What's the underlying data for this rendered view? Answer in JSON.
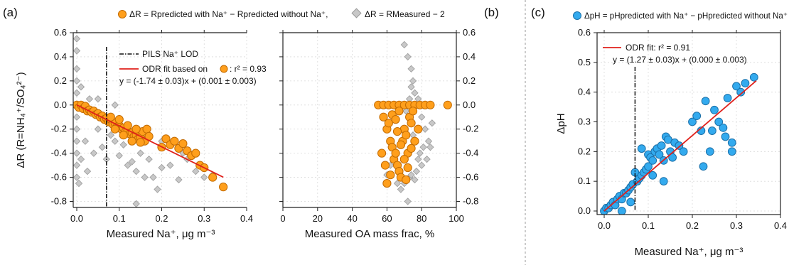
{
  "chart_data": [
    {
      "panel_label": "(a)",
      "type": "scatter",
      "legend_top": {
        "orange_text": "ΔR = Rpredicted with Na⁺ − Rpredicted without Na⁺,",
        "gray_text": "ΔR = RMeasured − 2"
      },
      "ylabel": "ΔR (R=NH₄⁺/SO₄²⁻)",
      "left": {
        "xlabel": "Measured Na⁺, μg m⁻³",
        "xlim": [
          0,
          0.4
        ],
        "ylim": [
          -0.85,
          0.6
        ],
        "xticks": [
          "0.0",
          "0.1",
          "0.2",
          "0.3",
          "0.4"
        ],
        "yticks": [
          "-0.8",
          "-0.6",
          "-0.4",
          "-0.2",
          "0.0",
          "0.2",
          "0.4",
          "0.6"
        ],
        "lod_label": "PILS Na⁺ LOD",
        "lod_x": 0.07,
        "fit_label_a": "ODR fit based on",
        "fit_label_b": ": r² = 0.93",
        "fit_eq": "y = (-1.74 ± 0.03)x + (0.001 ± 0.003)",
        "fit_slope": -1.74,
        "fit_intercept": 0.001,
        "fit_xrange": [
          0,
          0.345
        ],
        "orange_points": [
          [
            0.0,
            0.0
          ],
          [
            0.005,
            -0.02
          ],
          [
            0.01,
            0.0
          ],
          [
            0.015,
            -0.03
          ],
          [
            0.02,
            -0.01
          ],
          [
            0.025,
            -0.05
          ],
          [
            0.03,
            -0.04
          ],
          [
            0.035,
            -0.06
          ],
          [
            0.04,
            -0.05
          ],
          [
            0.045,
            -0.08
          ],
          [
            0.05,
            -0.07
          ],
          [
            0.055,
            -0.1
          ],
          [
            0.06,
            -0.09
          ],
          [
            0.065,
            -0.12
          ],
          [
            0.07,
            -0.11
          ],
          [
            0.075,
            -0.14
          ],
          [
            0.08,
            -0.12
          ],
          [
            0.085,
            -0.16
          ],
          [
            0.09,
            -0.15
          ],
          [
            0.095,
            -0.18
          ],
          [
            0.1,
            -0.17
          ],
          [
            0.105,
            -0.2
          ],
          [
            0.11,
            -0.19
          ],
          [
            0.115,
            -0.22
          ],
          [
            0.12,
            -0.21
          ],
          [
            0.125,
            -0.24
          ],
          [
            0.13,
            -0.23
          ],
          [
            0.135,
            -0.26
          ],
          [
            0.14,
            -0.25
          ],
          [
            0.145,
            -0.28
          ],
          [
            0.15,
            -0.27
          ],
          [
            0.155,
            -0.22
          ],
          [
            0.16,
            -0.3
          ],
          [
            0.165,
            -0.2
          ],
          [
            0.17,
            -0.26
          ],
          [
            0.09,
            -0.2
          ],
          [
            0.11,
            -0.25
          ],
          [
            0.13,
            -0.3
          ],
          [
            0.21,
            -0.28
          ],
          [
            0.22,
            -0.33
          ],
          [
            0.23,
            -0.3
          ],
          [
            0.24,
            -0.36
          ],
          [
            0.25,
            -0.32
          ],
          [
            0.26,
            -0.38
          ],
          [
            0.27,
            -0.42
          ],
          [
            0.28,
            -0.4
          ],
          [
            0.29,
            -0.5
          ],
          [
            0.3,
            -0.52
          ],
          [
            0.32,
            -0.6
          ],
          [
            0.345,
            -0.68
          ],
          [
            0.2,
            -0.35
          ],
          [
            0.15,
            -0.31
          ],
          [
            0.14,
            -0.2
          ],
          [
            0.12,
            -0.17
          ],
          [
            0.1,
            -0.12
          ],
          [
            0.08,
            -0.1
          ]
        ],
        "gray_points": [
          [
            0.0,
            0.55
          ],
          [
            0.0,
            0.45
          ],
          [
            0.0,
            0.3
          ],
          [
            0.0,
            0.2
          ],
          [
            0.0,
            0.1
          ],
          [
            0.0,
            -0.1
          ],
          [
            0.0,
            -0.2
          ],
          [
            0.0,
            -0.3
          ],
          [
            0.0,
            -0.4
          ],
          [
            0.0,
            -0.5
          ],
          [
            0.0,
            -0.6
          ],
          [
            0.005,
            -0.65
          ],
          [
            0.01,
            0.15
          ],
          [
            0.01,
            -0.45
          ],
          [
            0.02,
            -0.3
          ],
          [
            0.025,
            -0.55
          ],
          [
            0.03,
            0.05
          ],
          [
            0.04,
            -0.4
          ],
          [
            0.05,
            -0.2
          ],
          [
            0.06,
            -0.35
          ],
          [
            0.07,
            -0.45
          ],
          [
            0.08,
            -0.25
          ],
          [
            0.09,
            -0.3
          ],
          [
            0.1,
            -0.42
          ],
          [
            0.11,
            -0.33
          ],
          [
            0.12,
            -0.5
          ],
          [
            0.13,
            -0.47
          ],
          [
            0.14,
            -0.55
          ],
          [
            0.15,
            -0.4
          ],
          [
            0.16,
            -0.6
          ],
          [
            0.17,
            -0.45
          ],
          [
            0.18,
            -0.6
          ],
          [
            0.19,
            -0.7
          ],
          [
            0.2,
            -0.52
          ],
          [
            0.22,
            -0.5
          ],
          [
            0.24,
            -0.62
          ],
          [
            0.26,
            -0.45
          ],
          [
            0.28,
            -0.55
          ],
          [
            0.3,
            -0.6
          ],
          [
            0.32,
            -0.58
          ],
          [
            0.14,
            -0.82
          ],
          [
            0.09,
            0.0
          ],
          [
            0.05,
            0.05
          ],
          [
            0.1,
            -0.15
          ],
          [
            0.15,
            -0.25
          ],
          [
            0.2,
            -0.3
          ],
          [
            0.25,
            -0.4
          ]
        ]
      },
      "right": {
        "xlabel": "Measured OA mass frac, %",
        "xlim": [
          0,
          100
        ],
        "ylim": [
          -0.85,
          0.6
        ],
        "xticks": [
          "0",
          "20",
          "40",
          "60",
          "80",
          "100"
        ],
        "yticks": [
          "-0.8",
          "-0.6",
          "-0.4",
          "-0.2",
          "0.0",
          "0.2",
          "0.4",
          "0.6"
        ],
        "orange_points": [
          [
            55,
            0.0
          ],
          [
            58,
            0.0
          ],
          [
            61,
            0.0
          ],
          [
            64,
            0.0
          ],
          [
            67,
            0.0
          ],
          [
            70,
            0.0
          ],
          [
            73,
            0.0
          ],
          [
            76,
            0.0
          ],
          [
            79,
            0.0
          ],
          [
            82,
            0.0
          ],
          [
            85,
            0.0
          ],
          [
            95,
            0.0
          ],
          [
            58,
            -0.1
          ],
          [
            60,
            -0.2
          ],
          [
            62,
            -0.3
          ],
          [
            63,
            -0.35
          ],
          [
            64,
            -0.45
          ],
          [
            65,
            -0.4
          ],
          [
            66,
            -0.5
          ],
          [
            67,
            -0.55
          ],
          [
            68,
            -0.6
          ],
          [
            69,
            -0.3
          ],
          [
            70,
            -0.2
          ],
          [
            71,
            -0.25
          ],
          [
            72,
            -0.4
          ],
          [
            73,
            -0.1
          ],
          [
            74,
            -0.15
          ],
          [
            75,
            -0.05
          ],
          [
            76,
            -0.3
          ],
          [
            60,
            -0.65
          ],
          [
            62,
            -0.58
          ],
          [
            57,
            -0.4
          ],
          [
            59,
            -0.5
          ],
          [
            61,
            -0.15
          ],
          [
            63,
            -0.08
          ],
          [
            66,
            -0.22
          ],
          [
            68,
            -0.33
          ],
          [
            70,
            -0.45
          ],
          [
            72,
            -0.52
          ],
          [
            74,
            -0.36
          ],
          [
            65,
            -0.12
          ],
          [
            67,
            -0.05
          ],
          [
            71,
            -0.62
          ],
          [
            78,
            -0.2
          ]
        ],
        "gray_points": [
          [
            70,
            0.5
          ],
          [
            72,
            0.4
          ],
          [
            74,
            0.3
          ],
          [
            75,
            0.2
          ],
          [
            76,
            0.1
          ],
          [
            78,
            0.05
          ],
          [
            80,
            -0.1
          ],
          [
            82,
            -0.2
          ],
          [
            84,
            -0.3
          ],
          [
            85,
            -0.35
          ],
          [
            86,
            -0.15
          ],
          [
            78,
            -0.45
          ],
          [
            80,
            -0.5
          ],
          [
            77,
            -0.55
          ],
          [
            76,
            -0.62
          ],
          [
            72,
            -0.8
          ],
          [
            68,
            -0.7
          ],
          [
            70,
            -0.65
          ],
          [
            73,
            -0.6
          ],
          [
            74,
            -0.58
          ],
          [
            79,
            -0.4
          ],
          [
            81,
            -0.35
          ],
          [
            83,
            -0.45
          ],
          [
            74,
            0.15
          ],
          [
            73,
            0.05
          ],
          [
            71,
            -0.05
          ],
          [
            75,
            -0.25
          ],
          [
            66,
            -0.65
          ],
          [
            60,
            -0.58
          ],
          [
            62,
            -0.5
          ]
        ]
      }
    },
    {
      "panel_label": "(b)"
    },
    {
      "panel_label": "(c)",
      "type": "scatter",
      "legend_text": "ΔpH = pHpredicted with Na⁺ − pHpredicted without Na⁺",
      "xlabel": "Measured Na⁺, μg m⁻³",
      "ylabel": "ΔpH",
      "xlim": [
        0,
        0.4
      ],
      "ylim": [
        0,
        0.6
      ],
      "xticks": [
        "0.0",
        "0.1",
        "0.2",
        "0.3",
        "0.4"
      ],
      "yticks": [
        "0.0",
        "0.1",
        "0.2",
        "0.3",
        "0.4",
        "0.5",
        "0.6"
      ],
      "lod_x": 0.07,
      "fit_label": "ODR fit: r² = 0.91",
      "fit_eq": "y = (1.27 ± 0.03)x + (0.000 ± 0.003)",
      "fit_slope": 1.27,
      "fit_intercept": 0.0,
      "fit_xrange": [
        0,
        0.345
      ],
      "points": [
        [
          0.0,
          0.0
        ],
        [
          0.005,
          0.01
        ],
        [
          0.01,
          0.01
        ],
        [
          0.015,
          0.02
        ],
        [
          0.02,
          0.03
        ],
        [
          0.025,
          0.02
        ],
        [
          0.03,
          0.04
        ],
        [
          0.035,
          0.05
        ],
        [
          0.04,
          0.04
        ],
        [
          0.045,
          0.06
        ],
        [
          0.05,
          0.06
        ],
        [
          0.055,
          0.07
        ],
        [
          0.06,
          0.08
        ],
        [
          0.065,
          0.09
        ],
        [
          0.07,
          0.13
        ],
        [
          0.075,
          0.1
        ],
        [
          0.08,
          0.11
        ],
        [
          0.085,
          0.12
        ],
        [
          0.09,
          0.13
        ],
        [
          0.095,
          0.14
        ],
        [
          0.1,
          0.15
        ],
        [
          0.1,
          0.19
        ],
        [
          0.105,
          0.18
        ],
        [
          0.11,
          0.17
        ],
        [
          0.115,
          0.2
        ],
        [
          0.12,
          0.21
        ],
        [
          0.125,
          0.19
        ],
        [
          0.13,
          0.22
        ],
        [
          0.135,
          0.17
        ],
        [
          0.14,
          0.25
        ],
        [
          0.145,
          0.24
        ],
        [
          0.15,
          0.2
        ],
        [
          0.155,
          0.18
        ],
        [
          0.16,
          0.23
        ],
        [
          0.17,
          0.22
        ],
        [
          0.18,
          0.2
        ],
        [
          0.2,
          0.3
        ],
        [
          0.21,
          0.32
        ],
        [
          0.22,
          0.27
        ],
        [
          0.225,
          0.15
        ],
        [
          0.23,
          0.37
        ],
        [
          0.24,
          0.2
        ],
        [
          0.25,
          0.34
        ],
        [
          0.26,
          0.3
        ],
        [
          0.27,
          0.28
        ],
        [
          0.28,
          0.38
        ],
        [
          0.29,
          0.23
        ],
        [
          0.29,
          0.2
        ],
        [
          0.3,
          0.42
        ],
        [
          0.31,
          0.4
        ],
        [
          0.32,
          0.43
        ],
        [
          0.34,
          0.45
        ],
        [
          0.04,
          0.0
        ],
        [
          0.06,
          0.03
        ],
        [
          0.085,
          0.21
        ],
        [
          0.11,
          0.12
        ],
        [
          0.135,
          0.1
        ],
        [
          0.245,
          0.27
        ],
        [
          0.275,
          0.25
        ]
      ]
    }
  ]
}
